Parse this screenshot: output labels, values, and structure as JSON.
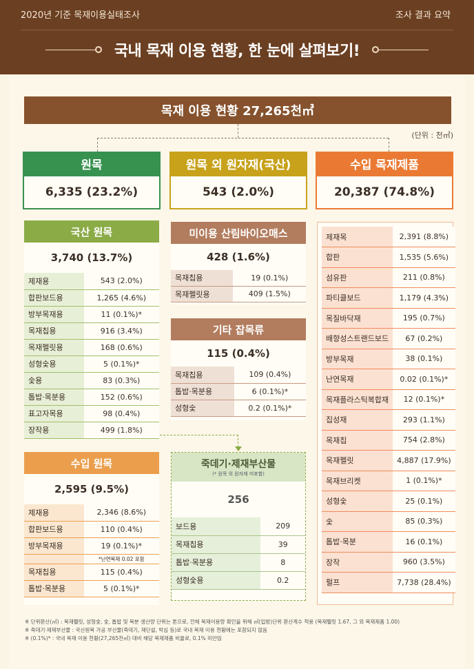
{
  "header": {
    "survey": "2020년 기준 목재이용실태조사",
    "summary": "조사 결과 요약",
    "title": "국내 목재 이용 현황, 한 눈에 살펴보기!"
  },
  "total": "목재 이용 현황 27,265천㎥",
  "unit": "(단위 : 천㎥)",
  "categories": {
    "raw": {
      "label": "원목",
      "value": "6,335 (23.2%)"
    },
    "other": {
      "label": "원목 외 원자재(국산)",
      "value": "543 (2.0%)"
    },
    "import": {
      "label": "수입 목재제품",
      "value": "20,387 (74.8%)"
    }
  },
  "domestic": {
    "label": "국산 원목",
    "total": "3,740 (13.7%)",
    "rows": [
      [
        "제재용",
        "543  (2.0%)"
      ],
      [
        "합판보드용",
        "1,265  (4.6%)"
      ],
      [
        "방부목재용",
        "11  (0.1%)*"
      ],
      [
        "목재칩용",
        "916  (3.4%)"
      ],
      [
        "목재펠릿용",
        "168  (0.6%)"
      ],
      [
        "성형숯용",
        "5  (0.1%)*"
      ],
      [
        "숯용",
        "83  (0.3%)"
      ],
      [
        "톱밥·목분용",
        "152  (0.6%)"
      ],
      [
        "표고자목용",
        "98  (0.4%)"
      ],
      [
        "장작용",
        "499  (1.8%)"
      ]
    ]
  },
  "imported_raw": {
    "label": "수입 원목",
    "total": "2,595 (9.5%)",
    "rows": [
      [
        "제재용",
        "2,346  (8.6%)"
      ],
      [
        "합판보드용",
        "110  (0.4%)"
      ],
      [
        "방부목재용",
        "19  (0.1%)*"
      ],
      [
        "목재칩용",
        "115  (0.4%)"
      ],
      [
        "톱밥·목분용",
        "5  (0.1%)*"
      ]
    ],
    "note": "*난연목재 0.02 포함"
  },
  "biomass": {
    "label": "미이용 산림바이오매스",
    "total": "428 (1.6%)",
    "rows": [
      [
        "목재칩용",
        "19  (0.1%)"
      ],
      [
        "목재펠릿용",
        "409  (1.5%)"
      ]
    ]
  },
  "misc": {
    "label": "기타 잡목류",
    "total": "115 (0.4%)",
    "rows": [
      [
        "목재칩용",
        "109  (0.4%)"
      ],
      [
        "톱밥·목분용",
        "6  (0.1%)*"
      ],
      [
        "성형숯",
        "0.2  (0.1%)*"
      ]
    ]
  },
  "byproduct": {
    "label": "죽데기·제재부산물",
    "sublabel": "(* 원목 외 원자재 미포함)",
    "total": "256",
    "rows": [
      [
        "보드용",
        "209"
      ],
      [
        "목재칩용",
        "39"
      ],
      [
        "톱밥·목분용",
        "8"
      ],
      [
        "성형숯용",
        "0.2"
      ]
    ]
  },
  "imports": {
    "rows": [
      [
        "제재목",
        "2,391  (8.8%)"
      ],
      [
        "합판",
        "1,535  (5.6%)"
      ],
      [
        "섬유판",
        "211  (0.8%)"
      ],
      [
        "파티클보드",
        "1,179  (4.3%)"
      ],
      [
        "목질바닥재",
        "195  (0.7%)"
      ],
      [
        "배향성스트랜드보드",
        "67  (0.2%)"
      ],
      [
        "방부목재",
        "38  (0.1%)"
      ],
      [
        "난연목재",
        "0.02  (0.1%)*"
      ],
      [
        "목재플라스틱복합재",
        "12  (0.1%)*"
      ],
      [
        "집성재",
        "293  (1.1%)"
      ],
      [
        "목재칩",
        "754  (2.8%)"
      ],
      [
        "목재펠릿",
        "4,887 (17.9%)"
      ],
      [
        "목재브리켓",
        "1  (0.1%)*"
      ],
      [
        "성형숯",
        "25  (0.1%)"
      ],
      [
        "숯",
        "85  (0.3%)"
      ],
      [
        "톱밥·목분",
        "16  (0.1%)"
      ],
      [
        "장작",
        "960  (3.5%)"
      ],
      [
        "펄프",
        "7,738 (28.4%)"
      ]
    ]
  },
  "notes": [
    "※ 단위환산(㎥) : 목재펠릿, 성형숯, 숯, 톱밥 및 목분 생산량 단위는 톤으로, 전체 목재이용량 확인을 위해 ㎥(입방)단위 환산계수 적용 (목재펠릿 1.67, 그 외 목재제품 1.00)",
    "※ 죽데기·제재부산물 : 국산원목 가공 부산물(죽데기, 재단설, 박심 등)로 국내 목재 이용 현황에는 포함되지 않음",
    "※ (0.1%)* : 국내 목재 이용 현황(27,265천㎥) 대비 해당 목재제품 비율로, 0.1% 미만임"
  ],
  "colors": {
    "brown": "#86522d",
    "green": "#37914f",
    "gold": "#c7a21a",
    "orange": "#ea7a33",
    "olive": "#8bab46",
    "light_orange": "#eb9f4d",
    "tan": "#b27c5e",
    "sage": "#d8e6c5"
  }
}
